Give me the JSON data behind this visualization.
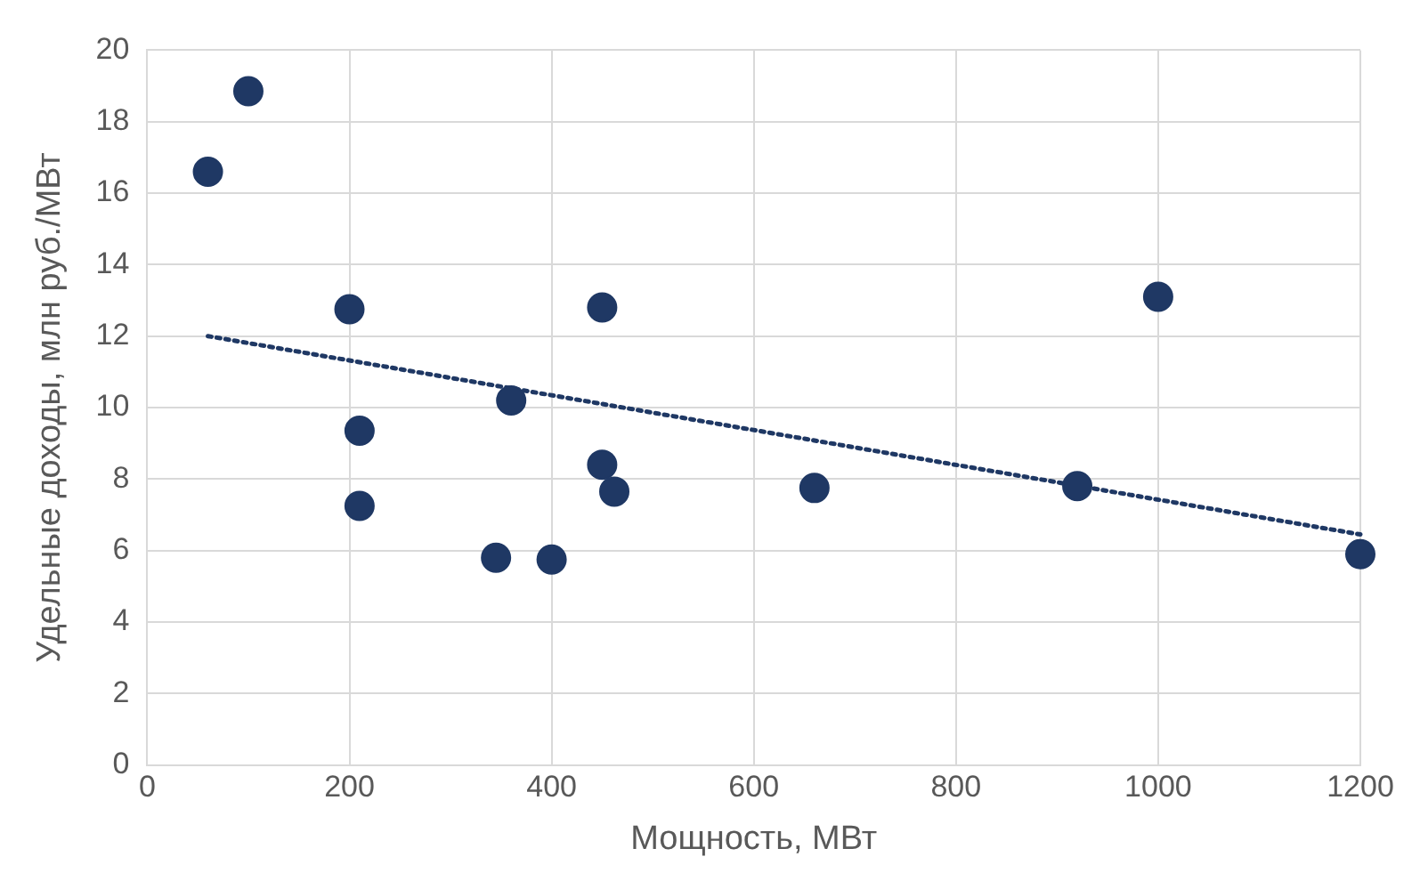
{
  "chart_data": {
    "type": "scatter",
    "xlabel": "Мощность, МВт",
    "ylabel": "Удельные доходы, млн руб./МВт",
    "xlim": [
      0,
      1200
    ],
    "xticks": [
      0,
      200,
      400,
      600,
      800,
      1000,
      1200
    ],
    "ylim": [
      0,
      20
    ],
    "yticks": [
      0,
      2,
      4,
      6,
      8,
      10,
      12,
      14,
      16,
      18,
      20
    ],
    "grid": true,
    "marker": "circle",
    "series": [
      {
        "type": "scatter",
        "color": "#1f3864",
        "x": [
          60,
          100,
          200,
          210,
          210,
          345,
          360,
          400,
          450,
          450,
          462,
          660,
          920,
          1000,
          1200
        ],
        "values": [
          16.6,
          18.85,
          12.75,
          9.35,
          7.25,
          5.8,
          10.2,
          5.75,
          12.8,
          8.4,
          7.65,
          7.75,
          7.8,
          13.1,
          5.9
        ]
      },
      {
        "type": "line",
        "color": "#1f3864",
        "line_style": "dotted",
        "marker": "none",
        "x": [
          60,
          1200
        ],
        "values": [
          12.0,
          6.45
        ]
      }
    ]
  }
}
